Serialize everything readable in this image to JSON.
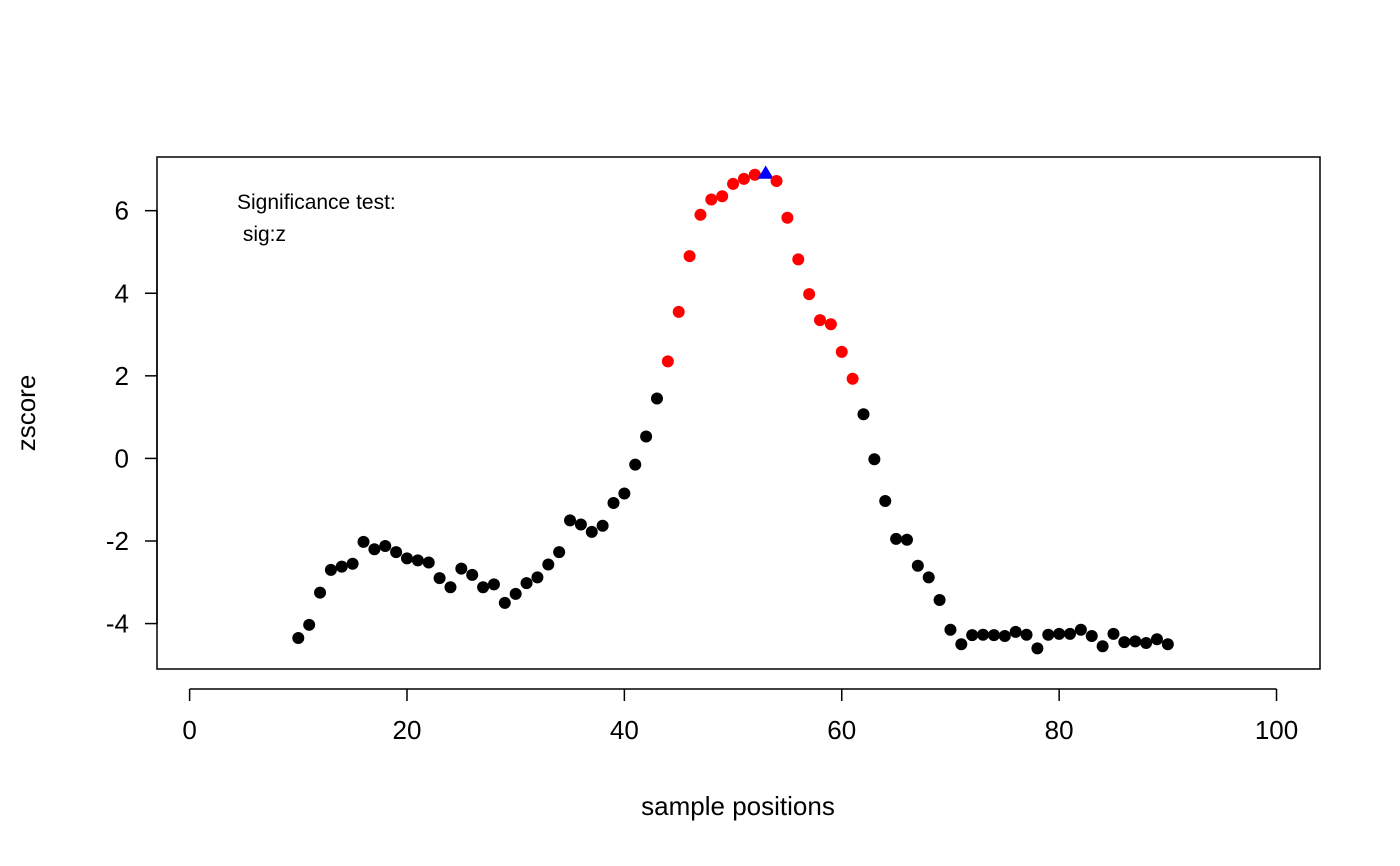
{
  "chart_data": {
    "type": "scatter",
    "xlabel": "sample positions",
    "ylabel": "zscore",
    "xlim": [
      -3,
      104
    ],
    "ylim": [
      -5.1,
      7.3
    ],
    "x_ticks": [
      0,
      20,
      40,
      60,
      80,
      100
    ],
    "y_ticks": [
      -4,
      -2,
      0,
      2,
      4,
      6
    ],
    "grid": false,
    "annotation": [
      "Significance test:",
      " sig:z"
    ],
    "colors": {
      "normal": "#000000",
      "significant": "#ff0000",
      "peak": "#0000ff"
    },
    "points": [
      {
        "x": 10,
        "y": -4.35,
        "s": "normal"
      },
      {
        "x": 11,
        "y": -4.03,
        "s": "normal"
      },
      {
        "x": 12,
        "y": -3.25,
        "s": "normal"
      },
      {
        "x": 13,
        "y": -2.7,
        "s": "normal"
      },
      {
        "x": 14,
        "y": -2.62,
        "s": "normal"
      },
      {
        "x": 15,
        "y": -2.55,
        "s": "normal"
      },
      {
        "x": 16,
        "y": -2.02,
        "s": "normal"
      },
      {
        "x": 17,
        "y": -2.2,
        "s": "normal"
      },
      {
        "x": 18,
        "y": -2.12,
        "s": "normal"
      },
      {
        "x": 19,
        "y": -2.27,
        "s": "normal"
      },
      {
        "x": 20,
        "y": -2.42,
        "s": "normal"
      },
      {
        "x": 21,
        "y": -2.47,
        "s": "normal"
      },
      {
        "x": 22,
        "y": -2.52,
        "s": "normal"
      },
      {
        "x": 23,
        "y": -2.9,
        "s": "normal"
      },
      {
        "x": 24,
        "y": -3.12,
        "s": "normal"
      },
      {
        "x": 25,
        "y": -2.67,
        "s": "normal"
      },
      {
        "x": 26,
        "y": -2.82,
        "s": "normal"
      },
      {
        "x": 27,
        "y": -3.12,
        "s": "normal"
      },
      {
        "x": 28,
        "y": -3.05,
        "s": "normal"
      },
      {
        "x": 29,
        "y": -3.5,
        "s": "normal"
      },
      {
        "x": 30,
        "y": -3.28,
        "s": "normal"
      },
      {
        "x": 31,
        "y": -3.02,
        "s": "normal"
      },
      {
        "x": 32,
        "y": -2.88,
        "s": "normal"
      },
      {
        "x": 33,
        "y": -2.57,
        "s": "normal"
      },
      {
        "x": 34,
        "y": -2.27,
        "s": "normal"
      },
      {
        "x": 35,
        "y": -1.5,
        "s": "normal"
      },
      {
        "x": 36,
        "y": -1.6,
        "s": "normal"
      },
      {
        "x": 37,
        "y": -1.78,
        "s": "normal"
      },
      {
        "x": 38,
        "y": -1.63,
        "s": "normal"
      },
      {
        "x": 39,
        "y": -1.08,
        "s": "normal"
      },
      {
        "x": 40,
        "y": -0.85,
        "s": "normal"
      },
      {
        "x": 41,
        "y": -0.15,
        "s": "normal"
      },
      {
        "x": 42,
        "y": 0.53,
        "s": "normal"
      },
      {
        "x": 43,
        "y": 1.45,
        "s": "normal"
      },
      {
        "x": 44,
        "y": 2.35,
        "s": "significant"
      },
      {
        "x": 45,
        "y": 3.55,
        "s": "significant"
      },
      {
        "x": 46,
        "y": 4.9,
        "s": "significant"
      },
      {
        "x": 47,
        "y": 5.9,
        "s": "significant"
      },
      {
        "x": 48,
        "y": 6.27,
        "s": "significant"
      },
      {
        "x": 49,
        "y": 6.35,
        "s": "significant"
      },
      {
        "x": 50,
        "y": 6.65,
        "s": "significant"
      },
      {
        "x": 51,
        "y": 6.77,
        "s": "significant"
      },
      {
        "x": 52,
        "y": 6.87,
        "s": "significant"
      },
      {
        "x": 53,
        "y": 6.9,
        "s": "peak"
      },
      {
        "x": 54,
        "y": 6.72,
        "s": "significant"
      },
      {
        "x": 55,
        "y": 5.83,
        "s": "significant"
      },
      {
        "x": 56,
        "y": 4.82,
        "s": "significant"
      },
      {
        "x": 57,
        "y": 3.98,
        "s": "significant"
      },
      {
        "x": 58,
        "y": 3.35,
        "s": "significant"
      },
      {
        "x": 59,
        "y": 3.25,
        "s": "significant"
      },
      {
        "x": 60,
        "y": 2.58,
        "s": "significant"
      },
      {
        "x": 61,
        "y": 1.93,
        "s": "significant"
      },
      {
        "x": 62,
        "y": 1.07,
        "s": "normal"
      },
      {
        "x": 63,
        "y": -0.02,
        "s": "normal"
      },
      {
        "x": 64,
        "y": -1.03,
        "s": "normal"
      },
      {
        "x": 65,
        "y": -1.95,
        "s": "normal"
      },
      {
        "x": 66,
        "y": -1.97,
        "s": "normal"
      },
      {
        "x": 67,
        "y": -2.6,
        "s": "normal"
      },
      {
        "x": 68,
        "y": -2.88,
        "s": "normal"
      },
      {
        "x": 69,
        "y": -3.43,
        "s": "normal"
      },
      {
        "x": 70,
        "y": -4.15,
        "s": "normal"
      },
      {
        "x": 71,
        "y": -4.5,
        "s": "normal"
      },
      {
        "x": 72,
        "y": -4.28,
        "s": "normal"
      },
      {
        "x": 73,
        "y": -4.27,
        "s": "normal"
      },
      {
        "x": 74,
        "y": -4.28,
        "s": "normal"
      },
      {
        "x": 75,
        "y": -4.3,
        "s": "normal"
      },
      {
        "x": 76,
        "y": -4.2,
        "s": "normal"
      },
      {
        "x": 77,
        "y": -4.27,
        "s": "normal"
      },
      {
        "x": 78,
        "y": -4.6,
        "s": "normal"
      },
      {
        "x": 79,
        "y": -4.27,
        "s": "normal"
      },
      {
        "x": 80,
        "y": -4.25,
        "s": "normal"
      },
      {
        "x": 81,
        "y": -4.25,
        "s": "normal"
      },
      {
        "x": 82,
        "y": -4.15,
        "s": "normal"
      },
      {
        "x": 83,
        "y": -4.3,
        "s": "normal"
      },
      {
        "x": 84,
        "y": -4.55,
        "s": "normal"
      },
      {
        "x": 85,
        "y": -4.25,
        "s": "normal"
      },
      {
        "x": 86,
        "y": -4.45,
        "s": "normal"
      },
      {
        "x": 87,
        "y": -4.43,
        "s": "normal"
      },
      {
        "x": 88,
        "y": -4.47,
        "s": "normal"
      },
      {
        "x": 89,
        "y": -4.38,
        "s": "normal"
      },
      {
        "x": 90,
        "y": -4.5,
        "s": "normal"
      }
    ]
  }
}
